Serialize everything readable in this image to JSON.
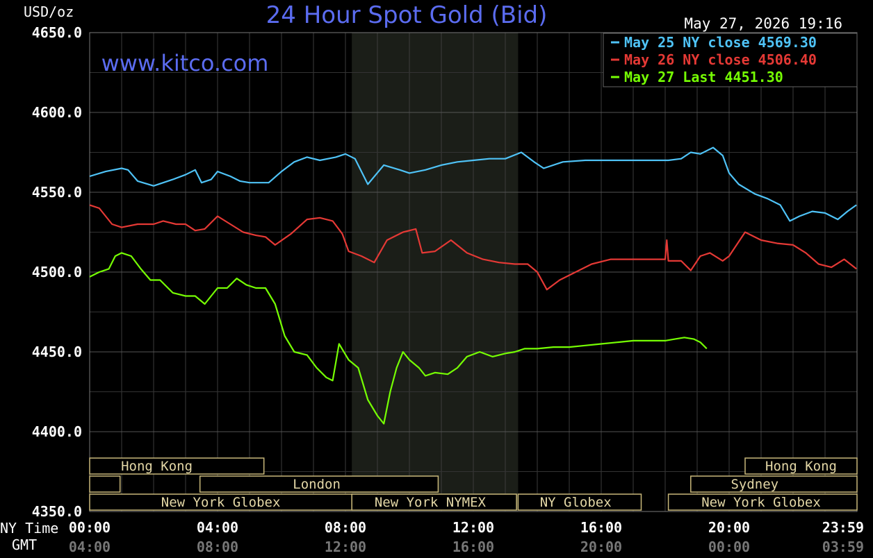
{
  "chart_data": {
    "type": "line",
    "title": "24 Hour Spot Gold (Bid)",
    "ylabel": "USD/oz",
    "watermark": "www.kitco.com",
    "timestamp": "May 27, 2026 19:16",
    "ylim": [
      4350,
      4650
    ],
    "y_ticks": [
      "4650.0",
      "4600.0",
      "4550.0",
      "4500.0",
      "4450.0",
      "4400.0",
      "4350.0"
    ],
    "x_row_labels": [
      "NY Time",
      "GMT"
    ],
    "x_ticks_ny": [
      "00:00",
      "04:00",
      "08:00",
      "12:00",
      "16:00",
      "20:00",
      "23:59"
    ],
    "x_ticks_gmt": [
      "04:00",
      "08:00",
      "12:00",
      "16:00",
      "20:00",
      "00:00",
      "03:59"
    ],
    "x_tick_hours": [
      0,
      4,
      8,
      12,
      16,
      20,
      23.983
    ],
    "grid": true,
    "highlight_hours": [
      8.2,
      13.4
    ],
    "sessions": [
      {
        "label": "Hong Kong",
        "row": 0,
        "start": 0,
        "end": 5.45,
        "label_at": 2.1
      },
      {
        "label": "Hong Kong",
        "row": 0,
        "start": 20.5,
        "end": 24,
        "label_at": 22.25
      },
      {
        "label": "",
        "row": 1,
        "start": 0,
        "end": 0.95,
        "label_at": 0.5
      },
      {
        "label": "London",
        "row": 1,
        "start": 3.45,
        "end": 10.9,
        "label_at": 7.1
      },
      {
        "label": "Sydney",
        "row": 1,
        "start": 18.8,
        "end": 24,
        "label_at": 20.8
      },
      {
        "label": "New York Globex",
        "row": 2,
        "start": 0,
        "end": 8.2,
        "label_at": 4.1
      },
      {
        "label": "New York NYMEX",
        "row": 2,
        "start": 8.2,
        "end": 13.35,
        "label_at": 10.65
      },
      {
        "label": "NY Globex",
        "row": 2,
        "start": 13.4,
        "end": 17.25,
        "label_at": 15.2
      },
      {
        "label": "New York Globex",
        "row": 2,
        "start": 18.1,
        "end": 24,
        "label_at": 21.0
      }
    ],
    "series": [
      {
        "name": "May 25 NY close 4569.30",
        "color": "#4fc3f7",
        "x": [
          0,
          0.5,
          1,
          1.2,
          1.5,
          2,
          2.3,
          2.6,
          3,
          3.3,
          3.5,
          3.8,
          4,
          4.4,
          4.7,
          5,
          5.3,
          5.6,
          6,
          6.4,
          6.8,
          7.2,
          7.7,
          8,
          8.3,
          8.7,
          9.2,
          9.7,
          10,
          10.5,
          11,
          11.5,
          12,
          12.5,
          13,
          13.5,
          13.9,
          14.2,
          14.8,
          15.5,
          16.5,
          17.5,
          18.1,
          18.5,
          18.8,
          19.1,
          19.3,
          19.5,
          19.8,
          20,
          20.3,
          20.8,
          21.2,
          21.6,
          21.9,
          22.2,
          22.6,
          23,
          23.4,
          23.7,
          23.98
        ],
        "y": [
          4560,
          4563,
          4565,
          4564,
          4557,
          4554,
          4556,
          4558,
          4561,
          4564,
          4556,
          4558,
          4563,
          4560,
          4557,
          4556,
          4556,
          4556,
          4563,
          4569,
          4572,
          4570,
          4572,
          4574,
          4571,
          4555,
          4567,
          4564,
          4562,
          4564,
          4567,
          4569,
          4570,
          4571,
          4571,
          4575,
          4569,
          4565,
          4569,
          4570,
          4570,
          4570,
          4570,
          4571,
          4575,
          4574,
          4576,
          4578,
          4573,
          4562,
          4555,
          4549,
          4546,
          4542,
          4532,
          4535,
          4538,
          4537,
          4533,
          4538,
          4542
        ]
      },
      {
        "name": "May 26 NY close 4506.40",
        "color": "#e53935",
        "x": [
          0,
          0.3,
          0.7,
          1,
          1.5,
          2,
          2.3,
          2.7,
          3,
          3.3,
          3.6,
          4,
          4.4,
          4.8,
          5.2,
          5.5,
          5.8,
          6.3,
          6.8,
          7.2,
          7.6,
          7.9,
          8.1,
          8.5,
          8.9,
          9.3,
          9.8,
          10.2,
          10.4,
          10.8,
          11.3,
          11.8,
          12.3,
          12.8,
          13.3,
          13.7,
          14,
          14.3,
          14.7,
          15.2,
          15.7,
          16.3,
          16.8,
          17.3,
          17.8,
          18,
          18.05,
          18.1,
          18.5,
          18.8,
          19.1,
          19.4,
          19.8,
          20,
          20.5,
          21,
          21.5,
          22,
          22.4,
          22.8,
          23.2,
          23.6,
          23.98
        ],
        "y": [
          4542,
          4540,
          4530,
          4528,
          4530,
          4530,
          4532,
          4530,
          4530,
          4526,
          4527,
          4535,
          4530,
          4525,
          4523,
          4522,
          4517,
          4524,
          4533,
          4534,
          4532,
          4524,
          4513,
          4510,
          4506,
          4520,
          4525,
          4527,
          4512,
          4513,
          4520,
          4512,
          4508,
          4506,
          4505,
          4505,
          4500,
          4489,
          4495,
          4500,
          4505,
          4508,
          4508,
          4508,
          4508,
          4508,
          4520,
          4507,
          4507,
          4501,
          4510,
          4512,
          4507,
          4510,
          4525,
          4520,
          4518,
          4517,
          4512,
          4505,
          4503,
          4508,
          4502
        ]
      },
      {
        "name": "May 27 Last 4451.30",
        "color": "#76ff03",
        "x": [
          0,
          0.3,
          0.6,
          0.8,
          1,
          1.3,
          1.6,
          1.9,
          2.2,
          2.6,
          3,
          3.3,
          3.6,
          4,
          4.3,
          4.6,
          4.9,
          5.2,
          5.5,
          5.8,
          6.1,
          6.4,
          6.8,
          7.1,
          7.4,
          7.6,
          7.8,
          8.1,
          8.4,
          8.7,
          9,
          9.2,
          9.4,
          9.6,
          9.8,
          10,
          10.3,
          10.5,
          10.8,
          11.2,
          11.5,
          11.8,
          12.2,
          12.6,
          13,
          13.3,
          13.6,
          14,
          14.5,
          15,
          15.5,
          16,
          16.5,
          17,
          17.5,
          18,
          18.3,
          18.6,
          18.9,
          19.1,
          19.3
        ],
        "y": [
          4497,
          4500,
          4502,
          4510,
          4512,
          4510,
          4502,
          4495,
          4495,
          4487,
          4485,
          4485,
          4480,
          4490,
          4490,
          4496,
          4492,
          4490,
          4490,
          4480,
          4460,
          4450,
          4448,
          4440,
          4434,
          4432,
          4455,
          4445,
          4440,
          4420,
          4410,
          4405,
          4425,
          4440,
          4450,
          4445,
          4440,
          4435,
          4437,
          4436,
          4440,
          4447,
          4450,
          4447,
          4449,
          4450,
          4452,
          4452,
          4453,
          4453,
          4454,
          4455,
          4456,
          4457,
          4457,
          4457,
          4458,
          4459,
          4458,
          4456,
          4452
        ]
      }
    ]
  }
}
